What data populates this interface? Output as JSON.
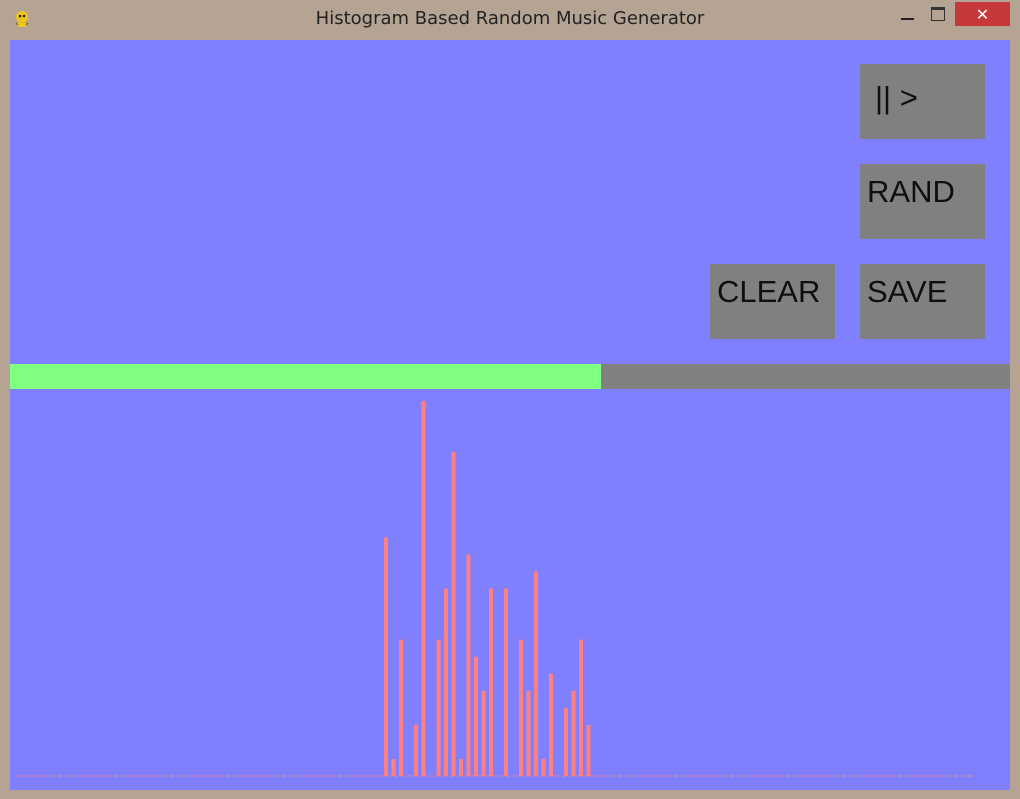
{
  "window": {
    "title": "Histogram Based Random Music Generator",
    "close_glyph": "✕"
  },
  "buttons": {
    "play_pause": "|| >",
    "rand": "RAND",
    "clear": "CLEAR",
    "save": "SAVE"
  },
  "colors": {
    "background": "#8080ff",
    "button": "#808080",
    "progress_fill": "#80ff80",
    "progress_track": "#808080",
    "bar": "#ff8080"
  },
  "progress": {
    "fraction": 0.591
  },
  "chart_data": {
    "type": "bar",
    "values": [
      14,
      1,
      8,
      0,
      3,
      22,
      0,
      8,
      11,
      19,
      1,
      13,
      7,
      5,
      11,
      0,
      11,
      0,
      8,
      5,
      12,
      1,
      6,
      0,
      4,
      5,
      8,
      3
    ],
    "ylim": [
      0,
      22
    ],
    "grid": false,
    "baseline_dashed": true
  }
}
